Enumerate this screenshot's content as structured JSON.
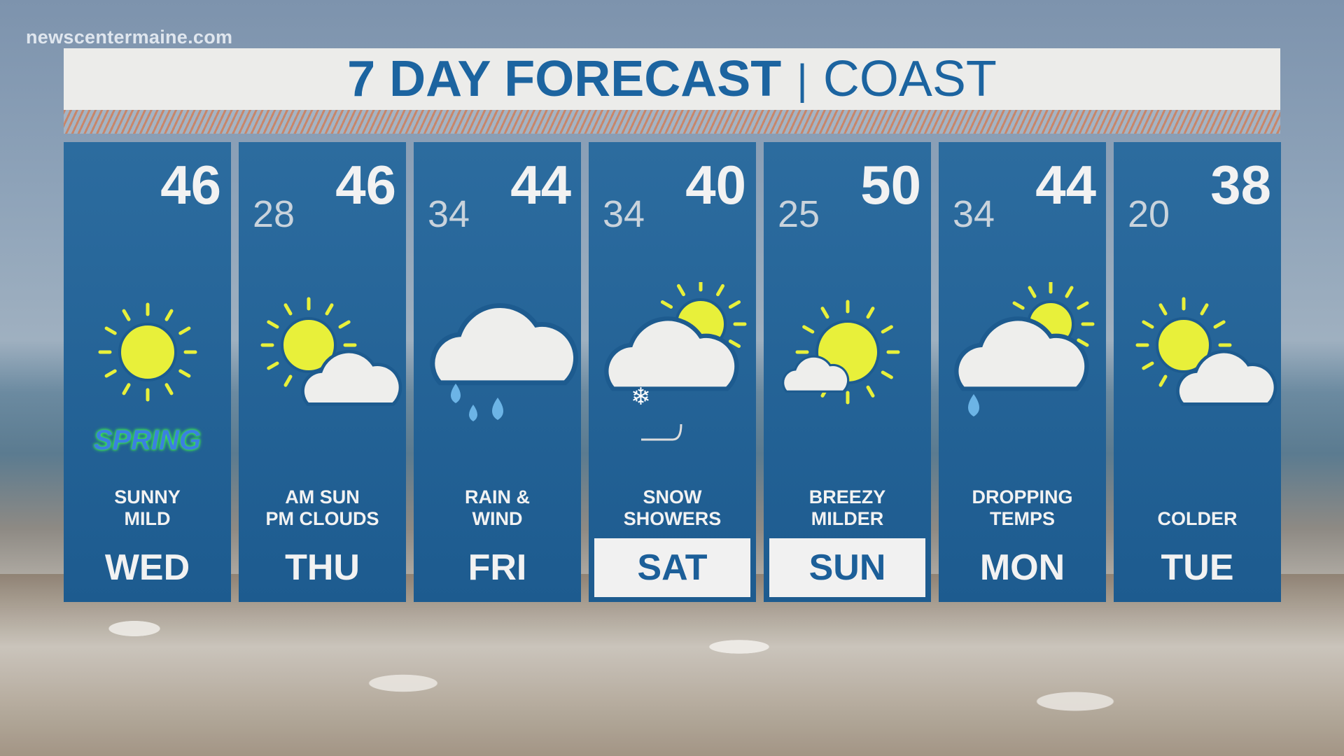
{
  "watermark": "newscentermaine.com",
  "header": {
    "title": "7 DAY FORECAST",
    "separator": "|",
    "region": "COAST"
  },
  "colors": {
    "panel": "#1d5b8f",
    "title": "#1c64a0",
    "sun": "#e8f03a",
    "raindrop": "#6cb4e6"
  },
  "days": [
    {
      "day": "WED",
      "high": "46",
      "low": "",
      "desc": [
        "SUNNY",
        "MILD"
      ],
      "icon": "sun-icon",
      "badge": "SPRING",
      "highlight": false
    },
    {
      "day": "THU",
      "high": "46",
      "low": "28",
      "desc": [
        "AM SUN",
        "PM CLOUDS"
      ],
      "icon": "partly-cloudy-icon",
      "highlight": false
    },
    {
      "day": "FRI",
      "high": "44",
      "low": "34",
      "desc": [
        "RAIN &",
        "WIND"
      ],
      "icon": "rain-cloud-icon",
      "highlight": false
    },
    {
      "day": "SAT",
      "high": "40",
      "low": "34",
      "desc": [
        "SNOW",
        "SHOWERS"
      ],
      "icon": "snow-cloud-sun-icon",
      "highlight": true
    },
    {
      "day": "SUN",
      "high": "50",
      "low": "25",
      "desc": [
        "BREEZY",
        "MILDER"
      ],
      "icon": "mostly-sunny-icon",
      "highlight": true
    },
    {
      "day": "MON",
      "high": "44",
      "low": "34",
      "desc": [
        "DROPPING",
        "TEMPS"
      ],
      "icon": "rain-cloud-sun-icon",
      "highlight": false
    },
    {
      "day": "TUE",
      "high": "38",
      "low": "20",
      "desc": [
        "",
        "COLDER"
      ],
      "icon": "partly-cloudy-icon",
      "highlight": false
    }
  ]
}
